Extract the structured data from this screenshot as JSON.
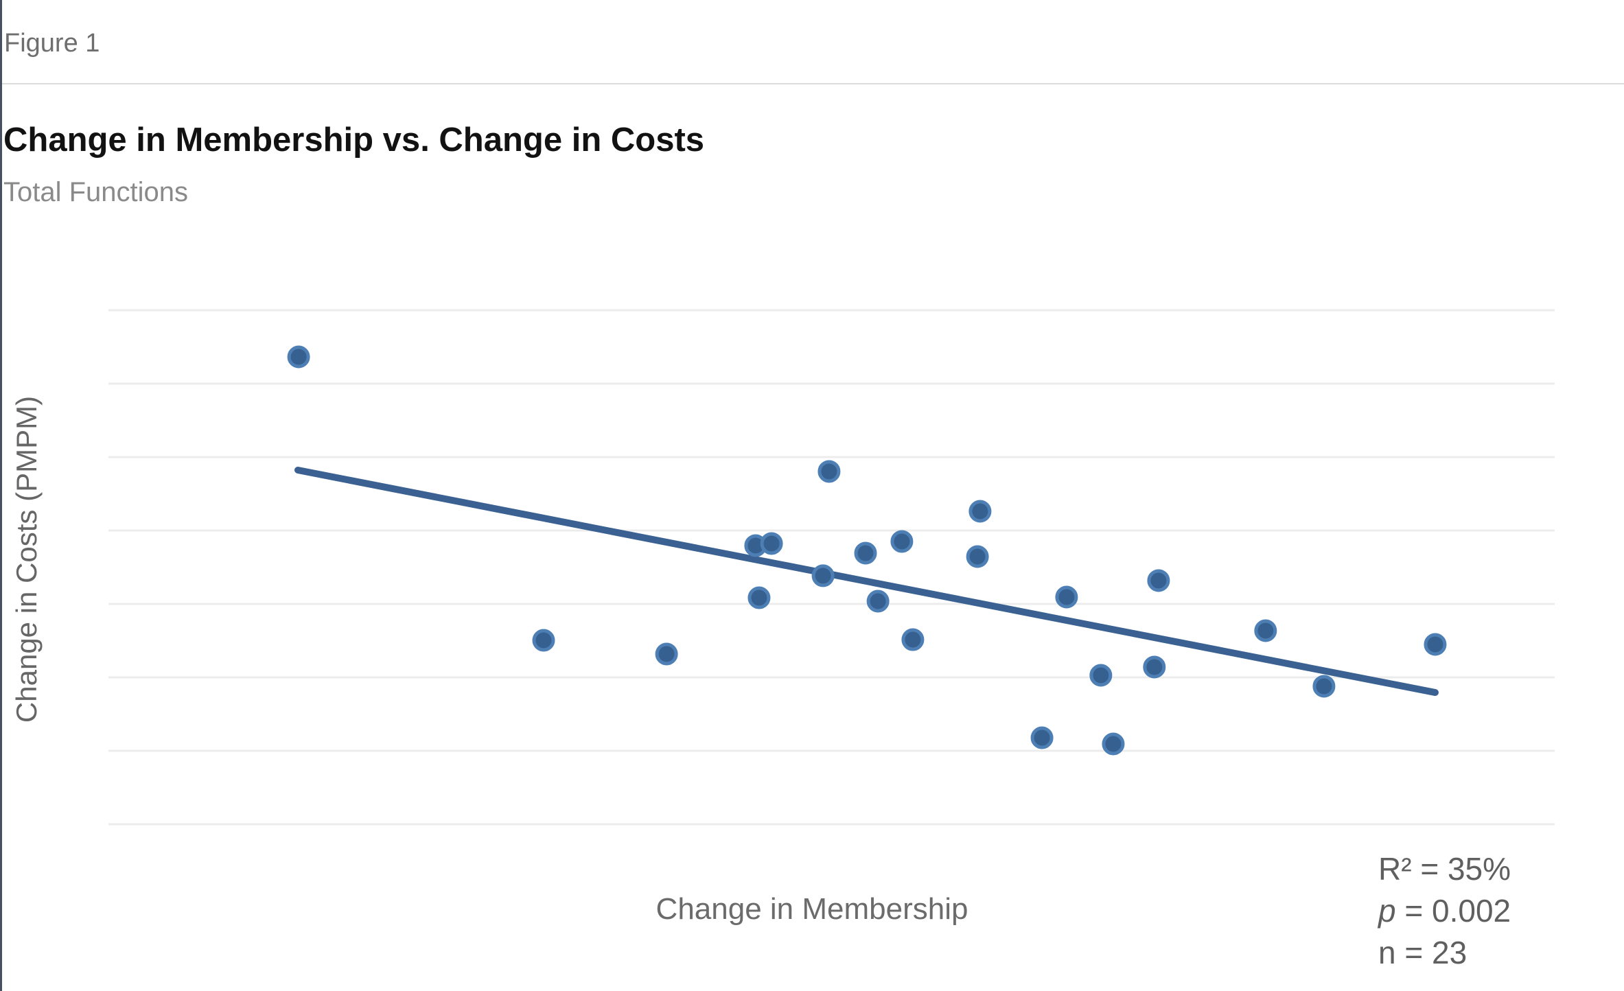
{
  "figure_label": "Figure 1",
  "header": {
    "title": "Change in Membership vs. Change in Costs",
    "subtitle": "Total Functions"
  },
  "chart_data": {
    "type": "scatter",
    "title": "Change in Membership vs. Change in Costs",
    "subtitle": "Total Functions",
    "xlabel": "Change in Membership",
    "ylabel": "Change in Costs (PMPM)",
    "tick_labels_visible": false,
    "axis_units": "none shown (unlabeled axes); point coordinates below are fractions of the plot area, x from left, y from top",
    "gridline_count": 8,
    "legend": "none",
    "points_frac": [
      {
        "x": 0.1315,
        "y": 0.0908
      },
      {
        "x": 0.4983,
        "y": 0.3137
      },
      {
        "x": 0.6027,
        "y": 0.3912
      },
      {
        "x": 0.4475,
        "y": 0.4579
      },
      {
        "x": 0.4585,
        "y": 0.4539
      },
      {
        "x": 0.5235,
        "y": 0.4726
      },
      {
        "x": 0.5486,
        "y": 0.4499
      },
      {
        "x": 0.6009,
        "y": 0.4793
      },
      {
        "x": 0.4941,
        "y": 0.5166
      },
      {
        "x": 0.4499,
        "y": 0.5594
      },
      {
        "x": 0.5321,
        "y": 0.5661
      },
      {
        "x": 0.6625,
        "y": 0.5581
      },
      {
        "x": 0.7261,
        "y": 0.526
      },
      {
        "x": 0.5562,
        "y": 0.6409
      },
      {
        "x": 0.3009,
        "y": 0.6422
      },
      {
        "x": 0.3859,
        "y": 0.6689
      },
      {
        "x": 0.6862,
        "y": 0.7103
      },
      {
        "x": 0.7232,
        "y": 0.6942
      },
      {
        "x": 0.8001,
        "y": 0.6235
      },
      {
        "x": 0.9174,
        "y": 0.6502
      },
      {
        "x": 0.8405,
        "y": 0.7316
      },
      {
        "x": 0.6455,
        "y": 0.8318
      },
      {
        "x": 0.6948,
        "y": 0.8438
      }
    ],
    "trendline_frac": {
      "x1": 0.131,
      "y1": 0.3111,
      "x2": 0.9174,
      "y2": 0.7437
    },
    "colors": {
      "point_fill": "#35608f",
      "point_stroke": "#4d7fb5",
      "trend_line": "#3a6191",
      "gridline": "#ececec"
    },
    "stats_annotation": {
      "r2_line": "R² = 35%",
      "p_label": "p",
      "p_rest": " = 0.002",
      "n_line": "n = 23"
    }
  }
}
